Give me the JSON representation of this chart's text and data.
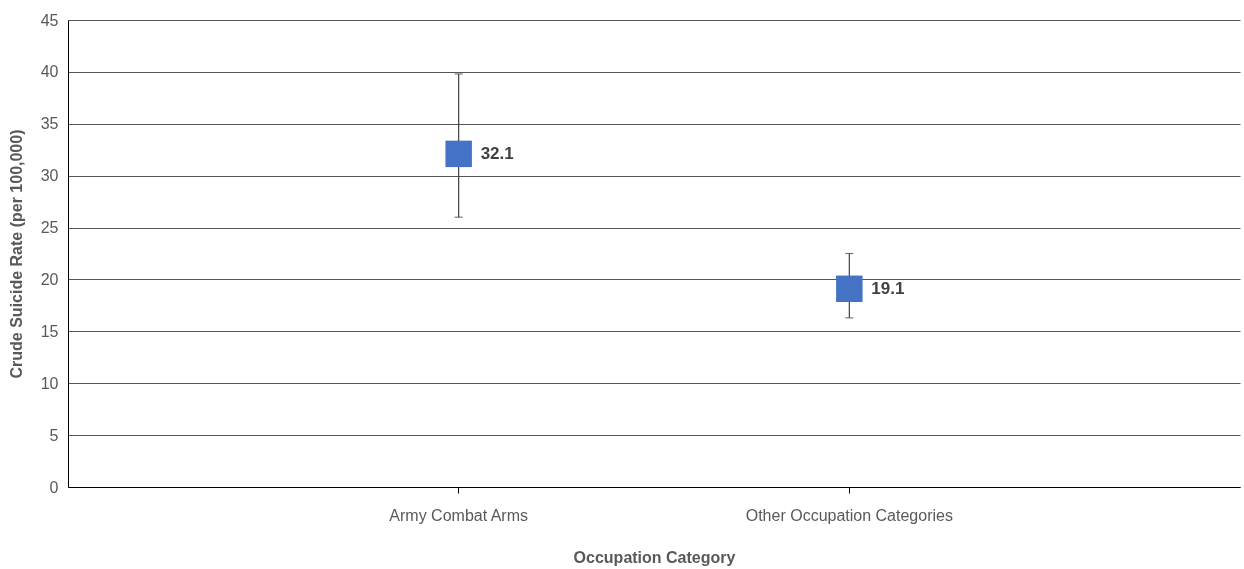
{
  "chart_data": {
    "type": "scatter",
    "xlabel": "Occupation Category",
    "ylabel": "Crude Suicide Rate (per 100,000)",
    "categories": [
      "Army Combat Arms",
      "Other Occupation Categories"
    ],
    "series": [
      {
        "color": "#4472c4",
        "values": [
          32.1,
          19.1
        ],
        "errors": [
          [
            26.0,
            39.8
          ],
          [
            16.3,
            22.5
          ]
        ]
      }
    ],
    "ylim": [
      0,
      45
    ],
    "yticks": [
      0,
      5,
      10,
      15,
      20,
      25,
      30,
      35,
      40,
      45
    ],
    "grid": "y",
    "marker": "square",
    "data_labels": true
  }
}
